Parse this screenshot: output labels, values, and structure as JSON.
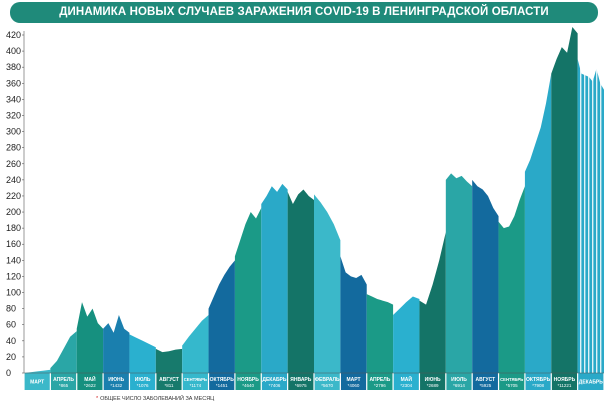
{
  "chart_data": {
    "type": "area",
    "title": "ДИНАМИКА НОВЫХ СЛУЧАЕВ ЗАРАЖЕНИЯ COVID-19 В ЛЕНИНГРАДСКОЙ ОБЛАСТИ",
    "ylim": [
      0,
      420
    ],
    "yticks": [
      0,
      20,
      40,
      60,
      80,
      100,
      120,
      140,
      160,
      180,
      200,
      220,
      240,
      260,
      280,
      300,
      320,
      340,
      360,
      380,
      400,
      420
    ],
    "grid": false,
    "footnote": "ОБЩЕЕ ЧИСЛО ЗАБОЛЕВАНИЙ ЗА МЕСЯЦ",
    "footnote_marker": "*",
    "months": [
      {
        "label": "МАРТ",
        "color": "#3bb8c9",
        "values": [
          0,
          1,
          2,
          3,
          4
        ]
      },
      {
        "label": "АПРЕЛЬ",
        "total": "*865",
        "color": "#2aa6a6",
        "values": [
          6,
          15,
          30,
          45,
          52
        ]
      },
      {
        "label": "МАЙ",
        "total": "*2622",
        "color": "#16907f",
        "values": [
          55,
          88,
          70,
          80,
          62,
          55
        ]
      },
      {
        "label": "ИЮНЬ",
        "total": "*1432",
        "color": "#1a7fae",
        "values": [
          55,
          62,
          50,
          72,
          55,
          50
        ]
      },
      {
        "label": "ИЮЛЬ",
        "total": "*1076",
        "color": "#2ab0cf",
        "values": [
          48,
          44,
          40,
          36,
          32
        ]
      },
      {
        "label": "АВГУСТ",
        "total": "*811",
        "color": "#177a6c",
        "values": [
          30,
          26,
          27,
          29,
          30
        ]
      },
      {
        "label": "СЕНТЯБРЬ",
        "total": "*1174",
        "color": "#35b8cc",
        "values": [
          34,
          45,
          55,
          65,
          72
        ]
      },
      {
        "label": "ОКТЯБРЬ",
        "total": "*1451",
        "color": "#136a9e",
        "values": [
          80,
          95,
          110,
          122,
          132,
          140
        ]
      },
      {
        "label": "НОЯБРЬ",
        "total": "*4640",
        "color": "#1b9a87",
        "values": [
          145,
          165,
          185,
          200,
          192,
          205
        ]
      },
      {
        "label": "ДЕКАБРЬ",
        "total": "*7406",
        "color": "#2aa9c8",
        "values": [
          210,
          220,
          232,
          225,
          235,
          228
        ]
      },
      {
        "label": "ЯНВАРЬ",
        "total": "*6975",
        "color": "#147467",
        "values": [
          225,
          210,
          222,
          228,
          220,
          215
        ]
      },
      {
        "label": "ФЕВРАЛЬ",
        "total": "*5670",
        "color": "#3bb8c9",
        "values": [
          222,
          212,
          200,
          185,
          165
        ]
      },
      {
        "label": "МАРТ",
        "total": "*4060",
        "color": "#136a9e",
        "values": [
          145,
          125,
          120,
          118,
          122,
          110
        ]
      },
      {
        "label": "АПРЕЛЬ",
        "total": "*2796",
        "color": "#1b9a87",
        "values": [
          98,
          95,
          92,
          90,
          88,
          85
        ]
      },
      {
        "label": "МАЙ",
        "total": "*2304",
        "color": "#2ab0cf",
        "values": [
          72,
          80,
          88,
          95,
          92
        ]
      },
      {
        "label": "ИЮНЬ",
        "total": "*2689",
        "color": "#147467",
        "values": [
          90,
          85,
          110,
          140,
          175
        ]
      },
      {
        "label": "ИЮЛЬ",
        "total": "*6914",
        "color": "#2aa6a6",
        "values": [
          240,
          248,
          242,
          245,
          238,
          232
        ]
      },
      {
        "label": "АВГУСТ",
        "total": "*5925",
        "color": "#136a9e",
        "values": [
          240,
          232,
          228,
          220,
          205,
          195
        ]
      },
      {
        "label": "СЕНТЯБРЬ",
        "total": "*5705",
        "color": "#1b9a87",
        "values": [
          188,
          180,
          182,
          195,
          215,
          232
        ]
      },
      {
        "label": "ОКТЯБРЬ",
        "total": "*7908",
        "color": "#2aa9c8",
        "values": [
          250,
          265,
          285,
          305,
          335,
          372
        ]
      },
      {
        "label": "НОЯБРЬ",
        "total": "*11221",
        "color": "#147467",
        "values": [
          372,
          390,
          405,
          398,
          430,
          422
        ]
      },
      {
        "label": "ДЕКАБРЬ",
        "color": "#2aa9c8",
        "striped": true,
        "values": [
          390,
          372,
          370,
          368,
          362,
          378,
          360,
          352
        ]
      }
    ]
  },
  "footnote_text": "ОБЩЕЕ ЧИСЛО ЗАБОЛЕВАНИЙ ЗА МЕСЯЦ"
}
